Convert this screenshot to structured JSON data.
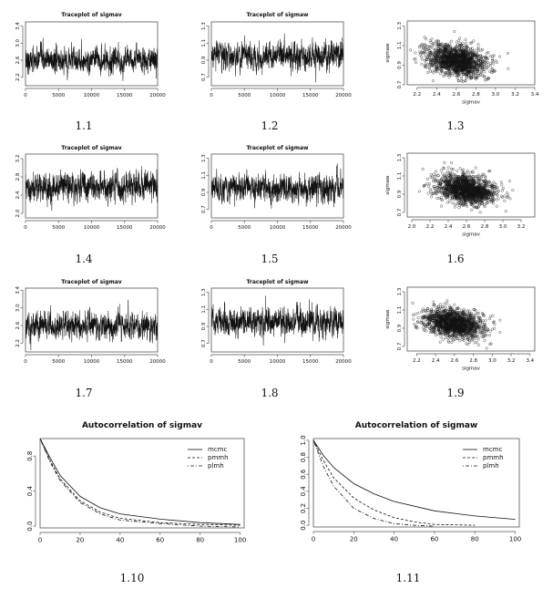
{
  "panel_labels": [
    "1.1",
    "1.2",
    "1.3",
    "1.4",
    "1.5",
    "1.6",
    "1.7",
    "1.8",
    "1.9",
    "1.10",
    "1.11"
  ],
  "colors": {
    "ink": "#111111",
    "frame": "#555555"
  },
  "chart_data": [
    {
      "id": "1.1",
      "type": "line",
      "title": "Traceplot of sigmav",
      "xlabel": "",
      "ylabel": "",
      "xlim": [
        0,
        20000
      ],
      "ylim": [
        2.0,
        3.5
      ],
      "xticks": [
        0,
        5000,
        10000,
        15000,
        20000
      ],
      "yticks": [
        2.2,
        2.6,
        3.0,
        3.4
      ],
      "ytick_labels": [
        "2.2",
        "2.6",
        "3.0",
        "3.4"
      ],
      "series": [
        {
          "mean": 2.6,
          "sd": 0.15
        }
      ]
    },
    {
      "id": "1.2",
      "type": "line",
      "title": "Traceplot of sigmaw",
      "xlabel": "",
      "ylabel": "",
      "xlim": [
        0,
        20000
      ],
      "ylim": [
        0.6,
        1.35
      ],
      "xticks": [
        0,
        5000,
        10000,
        15000,
        20000
      ],
      "yticks": [
        0.7,
        0.9,
        1.1,
        1.3
      ],
      "ytick_labels": [
        "0.7",
        "0.9",
        "1.1",
        "1.3"
      ],
      "series": [
        {
          "mean": 0.95,
          "sd": 0.08
        }
      ]
    },
    {
      "id": "1.3",
      "type": "scatter",
      "title": "",
      "xlabel": "sigmav",
      "ylabel": "sigmaw",
      "xlim": [
        2.1,
        3.4
      ],
      "ylim": [
        0.7,
        1.35
      ],
      "xticks": [
        2.2,
        2.4,
        2.6,
        2.8,
        3.0,
        3.2,
        3.4
      ],
      "yticks": [
        0.7,
        0.9,
        1.1,
        1.3
      ],
      "xtick_labels": [
        "2.2",
        "2.4",
        "2.6",
        "2.8",
        "3.0",
        "3.2",
        "3.4"
      ],
      "ytick_labels": [
        "0.7",
        "0.9",
        "1.1",
        "1.3"
      ],
      "center": [
        2.6,
        0.95
      ],
      "spread": [
        0.15,
        0.08
      ],
      "corr": -0.3
    },
    {
      "id": "1.4",
      "type": "line",
      "title": "Traceplot of sigmav",
      "xlabel": "",
      "ylabel": "",
      "xlim": [
        0,
        20000
      ],
      "ylim": [
        1.9,
        3.3
      ],
      "xticks": [
        0,
        5000,
        10000,
        15000,
        20000
      ],
      "yticks": [
        2.0,
        2.4,
        2.8,
        3.2
      ],
      "ytick_labels": [
        "2.0",
        "2.4",
        "2.8",
        "3.2"
      ],
      "series": [
        {
          "mean": 2.6,
          "sd": 0.16
        }
      ]
    },
    {
      "id": "1.5",
      "type": "line",
      "title": "Traceplot of sigmaw",
      "xlabel": "",
      "ylabel": "",
      "xlim": [
        0,
        20000
      ],
      "ylim": [
        0.6,
        1.35
      ],
      "xticks": [
        0,
        5000,
        10000,
        15000,
        20000
      ],
      "yticks": [
        0.7,
        0.9,
        1.1,
        1.3
      ],
      "ytick_labels": [
        "0.7",
        "0.9",
        "1.1",
        "1.3"
      ],
      "series": [
        {
          "mean": 0.95,
          "sd": 0.08
        }
      ]
    },
    {
      "id": "1.6",
      "type": "scatter",
      "title": "",
      "xlabel": "sigmav",
      "ylabel": "sigmaw",
      "xlim": [
        1.95,
        3.35
      ],
      "ylim": [
        0.65,
        1.35
      ],
      "xticks": [
        2.0,
        2.2,
        2.4,
        2.6,
        2.8,
        3.0,
        3.2
      ],
      "yticks": [
        0.7,
        0.9,
        1.1,
        1.3
      ],
      "xtick_labels": [
        "2.0",
        "2.2",
        "2.4",
        "2.6",
        "2.8",
        "3.0",
        "3.2"
      ],
      "ytick_labels": [
        "0.7",
        "0.9",
        "1.1",
        "1.3"
      ],
      "center": [
        2.6,
        0.95
      ],
      "spread": [
        0.16,
        0.08
      ],
      "corr": -0.3
    },
    {
      "id": "1.7",
      "type": "line",
      "title": "Traceplot of sigmav",
      "xlabel": "",
      "ylabel": "",
      "xlim": [
        0,
        20000
      ],
      "ylim": [
        2.0,
        3.45
      ],
      "xticks": [
        0,
        5000,
        10000,
        15000,
        20000
      ],
      "yticks": [
        2.2,
        2.6,
        3.0,
        3.4
      ],
      "ytick_labels": [
        "2.2",
        "2.6",
        "3.0",
        "3.4"
      ],
      "series": [
        {
          "mean": 2.6,
          "sd": 0.15
        }
      ]
    },
    {
      "id": "1.8",
      "type": "line",
      "title": "Traceplot of sigmaw",
      "xlabel": "",
      "ylabel": "",
      "xlim": [
        0,
        20000
      ],
      "ylim": [
        0.6,
        1.35
      ],
      "xticks": [
        0,
        5000,
        10000,
        15000,
        20000
      ],
      "yticks": [
        0.7,
        0.9,
        1.1,
        1.3
      ],
      "ytick_labels": [
        "0.7",
        "0.9",
        "1.1",
        "1.3"
      ],
      "series": [
        {
          "mean": 0.95,
          "sd": 0.08
        }
      ]
    },
    {
      "id": "1.9",
      "type": "scatter",
      "title": "",
      "xlabel": "sigmav",
      "ylabel": "sigmaw",
      "xlim": [
        2.1,
        3.45
      ],
      "ylim": [
        0.65,
        1.35
      ],
      "xticks": [
        2.2,
        2.4,
        2.6,
        2.8,
        3.0,
        3.2,
        3.4
      ],
      "yticks": [
        0.7,
        0.9,
        1.1,
        1.3
      ],
      "xtick_labels": [
        "2.2",
        "2.4",
        "2.6",
        "2.8",
        "3.0",
        "3.2",
        "3.4"
      ],
      "ytick_labels": [
        "0.7",
        "0.9",
        "1.1",
        "1.3"
      ],
      "center": [
        2.6,
        0.95
      ],
      "spread": [
        0.15,
        0.08
      ],
      "corr": -0.3
    },
    {
      "id": "1.10",
      "type": "line",
      "title": "Autocorrelation of sigmav",
      "xlabel": "",
      "ylabel": "",
      "xlim": [
        0,
        102
      ],
      "ylim": [
        -0.02,
        1.0
      ],
      "xticks": [
        0,
        20,
        40,
        60,
        80,
        100
      ],
      "yticks": [
        0.0,
        0.4,
        0.8
      ],
      "ytick_labels": [
        "0.0",
        "0.4",
        "0.8"
      ],
      "legend": {
        "position": "top-right",
        "entries": [
          "mcmc",
          "pmmh",
          "plmh"
        ]
      },
      "series": [
        {
          "name": "mcmc",
          "dash": "solid",
          "x": [
            0,
            5,
            10,
            20,
            30,
            40,
            60,
            80,
            100
          ],
          "values": [
            1.0,
            0.78,
            0.58,
            0.34,
            0.21,
            0.14,
            0.08,
            0.04,
            0.02
          ]
        },
        {
          "name": "pmmh",
          "dash": "dashed",
          "x": [
            0,
            5,
            10,
            20,
            30,
            40,
            60,
            80,
            100
          ],
          "values": [
            1.0,
            0.75,
            0.54,
            0.29,
            0.16,
            0.09,
            0.04,
            0.02,
            0.01
          ]
        },
        {
          "name": "plmh",
          "dash": "dotdash",
          "x": [
            0,
            5,
            10,
            20,
            30,
            40,
            60,
            80,
            100
          ],
          "values": [
            1.0,
            0.73,
            0.52,
            0.27,
            0.14,
            0.07,
            0.03,
            0.0,
            -0.01
          ]
        }
      ]
    },
    {
      "id": "1.11",
      "type": "line",
      "title": "Autocorrelation of sigmaw",
      "xlabel": "",
      "ylabel": "",
      "xlim": [
        0,
        102
      ],
      "ylim": [
        -0.02,
        1.02
      ],
      "xticks": [
        0,
        20,
        40,
        60,
        80,
        100
      ],
      "yticks": [
        0.0,
        0.2,
        0.4,
        0.6,
        0.8,
        1.0
      ],
      "ytick_labels": [
        "0.0",
        "0.2",
        "0.4",
        "0.6",
        "0.8",
        "1.0"
      ],
      "legend": {
        "position": "top-right",
        "entries": [
          "mcmc",
          "pmmh",
          "plmh"
        ]
      },
      "series": [
        {
          "name": "mcmc",
          "dash": "solid",
          "x": [
            0,
            5,
            10,
            20,
            30,
            40,
            60,
            80,
            100
          ],
          "values": [
            1.0,
            0.82,
            0.68,
            0.49,
            0.37,
            0.28,
            0.17,
            0.11,
            0.07
          ]
        },
        {
          "name": "pmmh",
          "dash": "dashed",
          "x": [
            0,
            5,
            10,
            20,
            30,
            40,
            50,
            60,
            80
          ],
          "values": [
            1.0,
            0.76,
            0.56,
            0.32,
            0.18,
            0.09,
            0.04,
            0.01,
            0.0
          ]
        },
        {
          "name": "plmh",
          "dash": "dotdash",
          "x": [
            0,
            5,
            10,
            20,
            30,
            40,
            50,
            60
          ],
          "values": [
            1.0,
            0.69,
            0.46,
            0.2,
            0.08,
            0.02,
            0.0,
            -0.01
          ]
        }
      ]
    }
  ]
}
